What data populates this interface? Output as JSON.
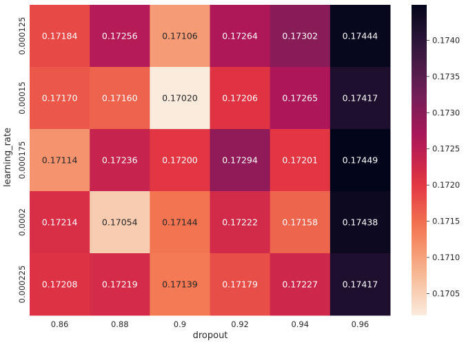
{
  "chart_data": {
    "type": "heatmap",
    "title": "",
    "xlabel": "dropout",
    "ylabel": "learning_rate",
    "x_categories": [
      "0.86",
      "0.88",
      "0.9",
      "0.92",
      "0.94",
      "0.96"
    ],
    "y_categories": [
      "0.000125",
      "0.00015",
      "0.000175",
      "0.0002",
      "0.000225"
    ],
    "values": [
      [
        0.17184,
        0.17256,
        0.17106,
        0.17264,
        0.17302,
        0.17444
      ],
      [
        0.1717,
        0.1716,
        0.1702,
        0.17206,
        0.17265,
        0.17417
      ],
      [
        0.17114,
        0.17236,
        0.172,
        0.17294,
        0.17201,
        0.17449
      ],
      [
        0.17214,
        0.17054,
        0.17144,
        0.17222,
        0.17158,
        0.17438
      ],
      [
        0.17208,
        0.17219,
        0.17139,
        0.17179,
        0.17227,
        0.17417
      ]
    ],
    "cell_labels": [
      [
        "0.17184",
        "0.17256",
        "0.17106",
        "0.17264",
        "0.17302",
        "0.17444"
      ],
      [
        "0.17170",
        "0.17160",
        "0.17020",
        "0.17206",
        "0.17265",
        "0.17417"
      ],
      [
        "0.17114",
        "0.17236",
        "0.17200",
        "0.17294",
        "0.17201",
        "0.17449"
      ],
      [
        "0.17214",
        "0.17054",
        "0.17144",
        "0.17222",
        "0.17158",
        "0.17438"
      ],
      [
        "0.17208",
        "0.17219",
        "0.17139",
        "0.17179",
        "0.17227",
        "0.17417"
      ]
    ],
    "colormap": "rocket_r",
    "vmin": 0.1702,
    "vmax": 0.17449,
    "colorbar": {
      "ticks": [
        0.1705,
        0.171,
        0.1715,
        0.172,
        0.1725,
        0.173,
        0.1735,
        0.174
      ],
      "tick_labels": [
        "0.1705",
        "0.1710",
        "0.1715",
        "0.1720",
        "0.1725",
        "0.1730",
        "0.1735",
        "0.1740"
      ]
    },
    "colormap_stops": [
      "#faebdd",
      "#f6b48e",
      "#f37651",
      "#e13342",
      "#ad1759",
      "#701f57",
      "#35193e",
      "#03051a"
    ],
    "text_colors": {
      "light": "#ffffff",
      "dark": "#262626"
    },
    "grid": false,
    "legend": "colorbar-right"
  }
}
